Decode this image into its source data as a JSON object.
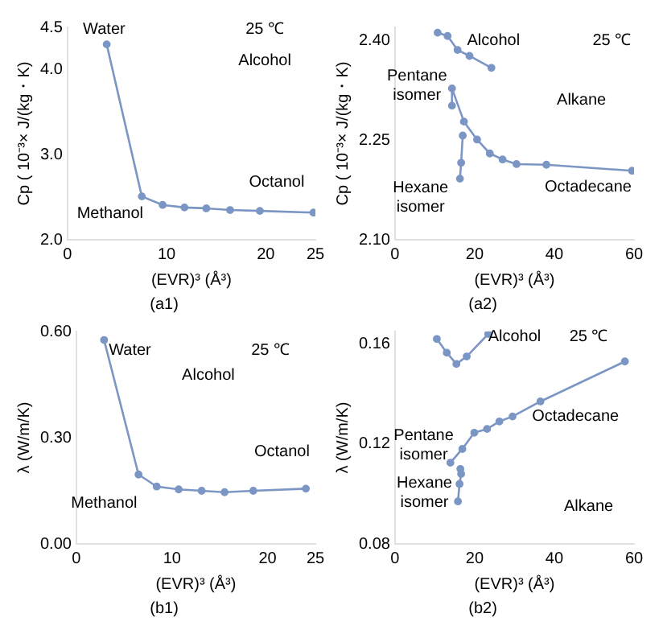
{
  "chart_data": [
    {
      "type": "line",
      "title": "(a1)",
      "xlabel": "(EVR)³ (Å³)",
      "ylabel": "Cp ( 10⁻³× J/(kg・K)",
      "xlim": [
        0,
        25
      ],
      "xticks": [
        0,
        10,
        20,
        25
      ],
      "ylim": [
        2.0,
        4.5
      ],
      "yticks": [
        {
          "value": 2,
          "label": "2.0"
        },
        {
          "value": 3,
          "label": "3.0"
        },
        {
          "value": 4,
          "label": "4.0"
        },
        4.5
      ],
      "grid": false,
      "legend": false,
      "marker": "circle",
      "line_style": "solid",
      "series": [
        {
          "color": "#7b96c4",
          "x": [
            3.96,
            7.5,
            9.6,
            11.8,
            14.0,
            16.4,
            19.4,
            24.8
          ],
          "values": [
            4.3,
            2.51,
            2.41,
            2.38,
            2.37,
            2.35,
            2.34,
            2.32
          ]
        }
      ],
      "annotations": [
        "Water",
        "25 ℃",
        "Alcohol",
        "Octanol",
        "Methanol"
      ]
    },
    {
      "type": "line",
      "title": "(a2)",
      "xlabel": "(EVR)³ (Å³)",
      "ylabel": "Cp ( 10⁻³× J/(kg・K)",
      "xlim": [
        0,
        60
      ],
      "xticks": [
        0,
        20,
        40,
        60
      ],
      "ylim": [
        2.1,
        2.42
      ],
      "yticks": [
        {
          "value": 2.1,
          "label": "2.10"
        },
        2.25,
        {
          "value": 2.4,
          "label": "2.40"
        }
      ],
      "grid": false,
      "legend": false,
      "marker": "circle",
      "line_style": "solid",
      "series": [
        {
          "color": "#7b96c4",
          "x": [
            10.7,
            13.2,
            15.7,
            18.7,
            24.2
          ],
          "values": [
            2.412,
            2.407,
            2.386,
            2.377,
            2.359
          ]
        },
        {
          "color": "#7b96c4",
          "x": [
            17.0,
            16.6,
            16.3
          ],
          "values": [
            2.257,
            2.216,
            2.192
          ]
        },
        {
          "color": "#7b96c4",
          "x": [
            14.3,
            14.3,
            17.3,
            20.6,
            23.8,
            27.0,
            30.5,
            38.0,
            59.5
          ],
          "values": [
            2.302,
            2.328,
            2.278,
            2.251,
            2.23,
            2.221,
            2.214,
            2.213,
            2.204
          ]
        }
      ],
      "annotations": [
        "Alcohol",
        "25 ℃",
        "Pentane isomer",
        "Alkane",
        "Hexane isomer",
        "Octadecane"
      ]
    },
    {
      "type": "line",
      "title": "(b1)",
      "xlabel": "(EVR)³ (Å³)",
      "ylabel": "λ (W/m/K)",
      "xlim": [
        0,
        25
      ],
      "xticks": [
        0,
        10,
        20,
        25
      ],
      "ylim": [
        0,
        0.6
      ],
      "yticks": [
        {
          "value": 0,
          "label": "0.00"
        },
        {
          "value": 0.3,
          "label": "0.30"
        },
        {
          "value": 0.6,
          "label": "0.60"
        }
      ],
      "grid": false,
      "legend": false,
      "marker": "circle",
      "line_style": "solid",
      "series": [
        {
          "color": "#7b96c4",
          "x": [
            2.9,
            6.5,
            8.4,
            10.7,
            13.1,
            15.5,
            18.5,
            24.0
          ],
          "values": [
            0.576,
            0.196,
            0.162,
            0.154,
            0.15,
            0.146,
            0.15,
            0.156
          ]
        }
      ],
      "annotations": [
        "Water",
        "25 ℃",
        "Alcohol",
        "Octanol",
        "Methanol"
      ]
    },
    {
      "type": "line",
      "title": "(b2)",
      "xlabel": "(EVR)³ (Å³)",
      "ylabel": "λ (W/m/K)",
      "xlim": [
        0,
        60
      ],
      "xticks": [
        0,
        20,
        40,
        60
      ],
      "ylim": [
        0.08,
        0.165
      ],
      "yticks": [
        {
          "value": 0.08,
          "label": "0.08"
        },
        {
          "value": 0.12,
          "label": "0.12"
        },
        {
          "value": 0.16,
          "label": "0.16"
        }
      ],
      "grid": false,
      "legend": false,
      "marker": "circle",
      "line_style": "solid",
      "series": [
        {
          "color": "#7b96c4",
          "x": [
            10.5,
            13.0,
            15.4,
            18.0,
            23.4
          ],
          "values": [
            0.162,
            0.1565,
            0.152,
            0.155,
            0.164
          ]
        },
        {
          "color": "#7b96c4",
          "x": [
            13.9,
            16.9,
            19.9,
            23.1,
            26.2,
            29.5,
            36.5,
            57.7
          ],
          "values": [
            0.1125,
            0.118,
            0.1245,
            0.126,
            0.129,
            0.131,
            0.137,
            0.153
          ]
        },
        {
          "color": "#7b96c4",
          "x": [
            16.4,
            16.6,
            16.2,
            15.8
          ],
          "values": [
            0.11,
            0.108,
            0.104,
            0.097
          ]
        }
      ],
      "annotations": [
        "Alcohol",
        "25 ℃",
        "Octadecane",
        "Pentane isomer",
        "Hexane isomer",
        "Alkane"
      ]
    }
  ]
}
